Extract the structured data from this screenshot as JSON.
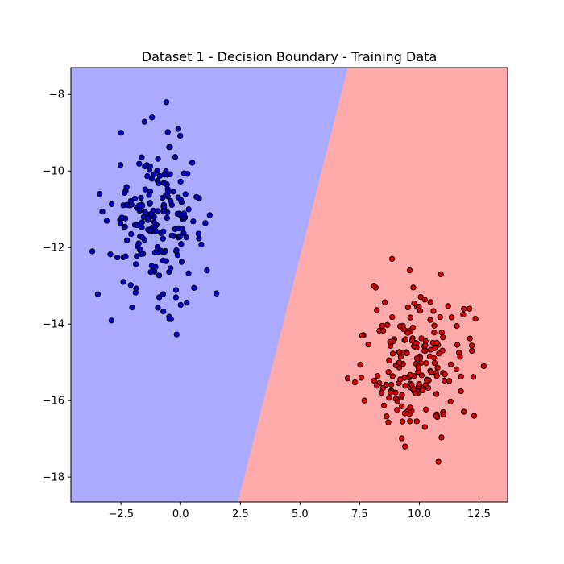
{
  "chart_data": {
    "type": "scatter",
    "title": "Dataset 1 - Decision Boundary - Training Data",
    "xlabel": "",
    "ylabel": "",
    "xlim": [
      -4.6,
      13.7
    ],
    "ylim": [
      -18.65,
      -7.3
    ],
    "x_ticks": [
      -2.5,
      0.0,
      2.5,
      5.0,
      7.5,
      10.0,
      12.5
    ],
    "x_tick_labels": [
      "−2.5",
      "0.0",
      "2.5",
      "5.0",
      "7.5",
      "10.0",
      "12.5"
    ],
    "y_ticks": [
      -8,
      -10,
      -12,
      -14,
      -16,
      -18
    ],
    "y_tick_labels": [
      "−8",
      "−10",
      "−12",
      "−14",
      "−16",
      "−18"
    ],
    "grid": false,
    "decision_boundary": {
      "points": [
        [
          7.0,
          -7.3
        ],
        [
          2.4,
          -18.65
        ]
      ],
      "left_region_color": "#aaaaff",
      "right_region_color": "#ffaaaa"
    },
    "series": [
      {
        "color": "#0000cc",
        "edge_color": "#000000",
        "center": [
          -1.0,
          -11.3
        ],
        "spread": [
          1.0,
          1.05
        ],
        "count": 200,
        "outliers": [
          [
            -2.5,
            -9.0
          ],
          [
            -0.6,
            -8.2
          ],
          [
            -0.1,
            -8.9
          ],
          [
            -3.7,
            -12.1
          ],
          [
            1.5,
            -13.2
          ],
          [
            0.0,
            -13.5
          ],
          [
            -0.9,
            -13.3
          ],
          [
            -1.2,
            -8.6
          ],
          [
            1.1,
            -12.6
          ],
          [
            -3.4,
            -10.6
          ],
          [
            -2.4,
            -12.9
          ]
        ]
      },
      {
        "color": "#dd0000",
        "edge_color": "#000000",
        "center": [
          9.9,
          -15.0
        ],
        "spread": [
          1.05,
          0.95
        ],
        "count": 200,
        "outliers": [
          [
            10.8,
            -17.6
          ],
          [
            9.4,
            -17.2
          ],
          [
            10.9,
            -12.7
          ],
          [
            9.6,
            -12.6
          ],
          [
            12.7,
            -15.1
          ],
          [
            7.6,
            -14.3
          ],
          [
            7.7,
            -16.0
          ],
          [
            12.3,
            -16.4
          ],
          [
            8.1,
            -13.0
          ],
          [
            12.1,
            -13.6
          ]
        ]
      }
    ]
  }
}
